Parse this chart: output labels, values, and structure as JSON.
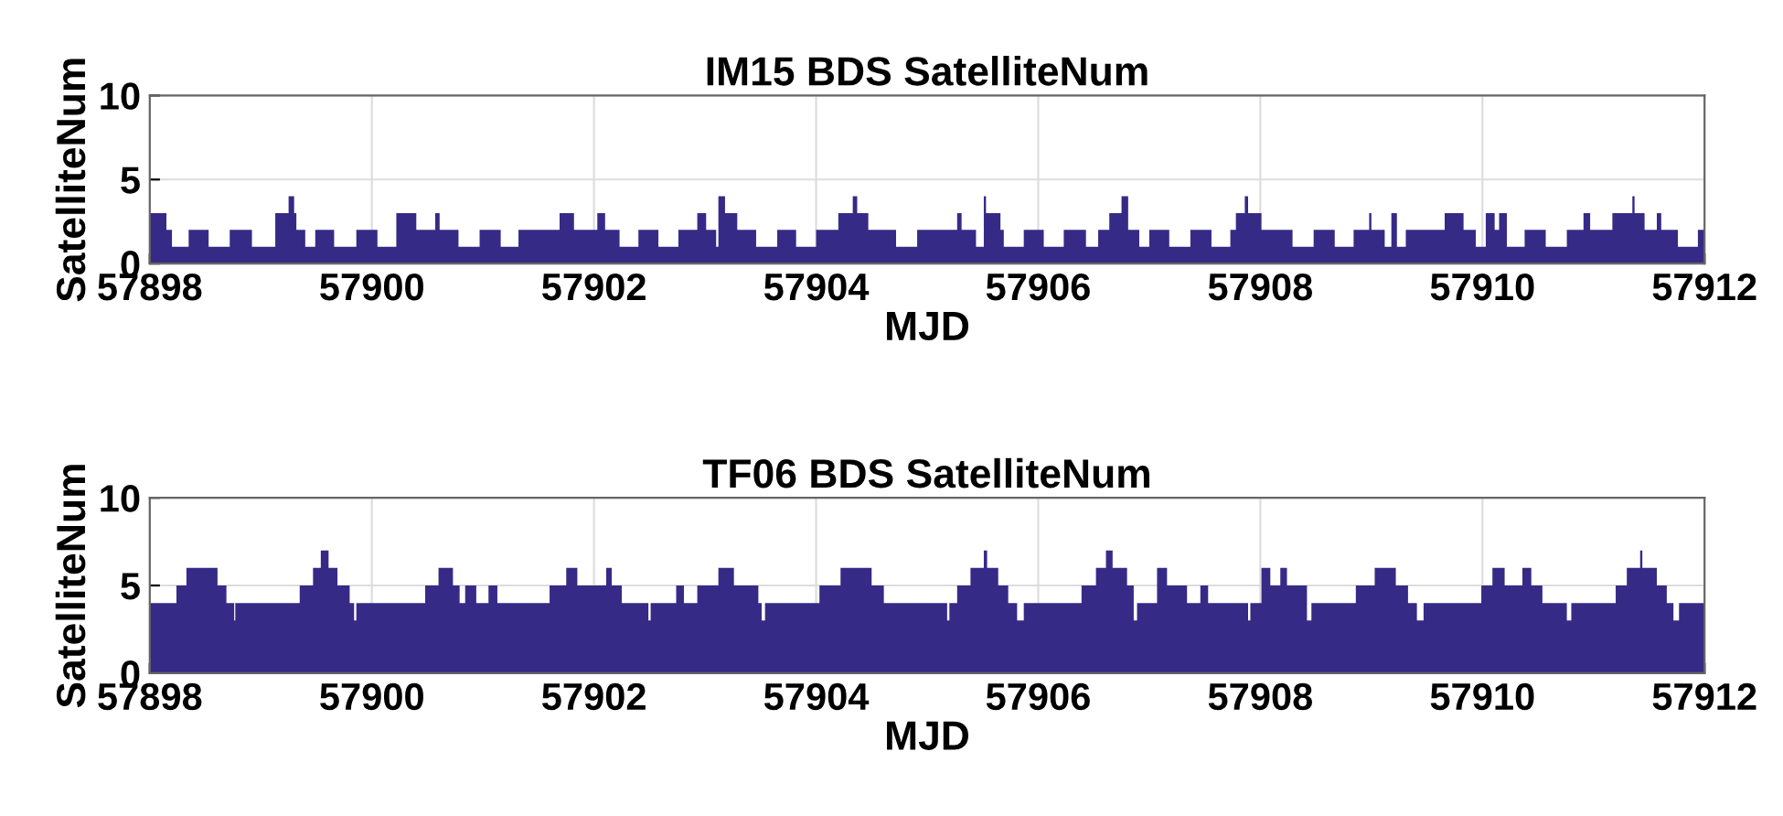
{
  "chart_data": [
    {
      "type": "area",
      "title": "IM15 BDS SatelliteNum",
      "xlabel": "MJD",
      "ylabel": "SatelliteNum",
      "color": "#362a87",
      "x": [
        57898,
        57898.15,
        57898.15,
        57898.2,
        57898.2,
        57898.35,
        57898.35,
        57898.53,
        57898.53,
        57898.72,
        57898.72,
        57898.92,
        57898.92,
        57899.13,
        57899.13,
        57899.25,
        57899.25,
        57899.3,
        57899.3,
        57899.32,
        57899.32,
        57899.4,
        57899.4,
        57899.49,
        57899.49,
        57899.66,
        57899.66,
        57899.86,
        57899.86,
        57900.05,
        57900.05,
        57900.22,
        57900.22,
        57900.4,
        57900.4,
        57900.57,
        57900.57,
        57900.61,
        57900.61,
        57900.78,
        57900.78,
        57900.97,
        57900.97,
        57901.16,
        57901.16,
        57901.32,
        57901.32,
        57901.69,
        57901.69,
        57901.82,
        57901.82,
        57902.03,
        57902.03,
        57902.1,
        57902.1,
        57902.23,
        57902.23,
        57902.4,
        57902.4,
        57902.58,
        57902.58,
        57902.76,
        57902.76,
        57902.93,
        57902.93,
        57903.01,
        57903.01,
        57903.1,
        57903.1,
        57903.12,
        57903.12,
        57903.18,
        57903.18,
        57903.29,
        57903.29,
        57903.46,
        57903.46,
        57903.65,
        57903.65,
        57903.82,
        57903.82,
        57904,
        57904,
        57904.2,
        57904.2,
        57904.33,
        57904.33,
        57904.37,
        57904.37,
        57904.47,
        57904.47,
        57904.72,
        57904.72,
        57904.91,
        57904.91,
        57905.27,
        57905.27,
        57905.31,
        57905.31,
        57905.44,
        57905.44,
        57905.51,
        57905.51,
        57905.53,
        57905.53,
        57905.66,
        57905.66,
        57905.69,
        57905.69,
        57905.87,
        57905.87,
        57906.05,
        57906.05,
        57906.23,
        57906.23,
        57906.43,
        57906.43,
        57906.54,
        57906.54,
        57906.64,
        57906.64,
        57906.75,
        57906.75,
        57906.81,
        57906.81,
        57906.91,
        57906.91,
        57907,
        57907,
        57907.18,
        57907.18,
        57907.37,
        57907.37,
        57907.56,
        57907.56,
        57907.73,
        57907.73,
        57907.78,
        57907.78,
        57907.86,
        57907.86,
        57907.89,
        57907.89,
        57908.01,
        57908.01,
        57908.29,
        57908.29,
        57908.48,
        57908.48,
        57908.67,
        57908.67,
        57908.84,
        57908.84,
        57908.98,
        57908.98,
        57909,
        57909,
        57909.12,
        57909.12,
        57909.18,
        57909.18,
        57909.23,
        57909.23,
        57909.31,
        57909.31,
        57909.66,
        57909.66,
        57909.83,
        57909.83,
        57909.94,
        57909.94,
        57910.03,
        57910.03,
        57910.11,
        57910.11,
        57910.15,
        57910.15,
        57910.22,
        57910.22,
        57910.38,
        57910.38,
        57910.57,
        57910.57,
        57910.76,
        57910.76,
        57910.91,
        57910.91,
        57910.97,
        57910.97,
        57911.17,
        57911.17,
        57911.35,
        57911.35,
        57911.37,
        57911.37,
        57911.46,
        57911.46,
        57911.57,
        57911.57,
        57911.61,
        57911.61,
        57911.76,
        57911.76,
        57911.94,
        57911.94,
        57912
      ],
      "values": [
        3,
        3,
        2,
        2,
        1,
        1,
        2,
        2,
        1,
        1,
        2,
        2,
        1,
        1,
        3,
        3,
        4,
        4,
        3,
        3,
        2,
        2,
        1,
        1,
        2,
        2,
        1,
        1,
        2,
        2,
        1,
        1,
        3,
        3,
        2,
        2,
        3,
        3,
        2,
        2,
        1,
        1,
        2,
        2,
        1,
        1,
        2,
        2,
        3,
        3,
        2,
        2,
        3,
        3,
        2,
        2,
        1,
        1,
        2,
        2,
        1,
        1,
        2,
        2,
        3,
        3,
        2,
        2,
        1,
        1,
        4,
        4,
        3,
        3,
        2,
        2,
        1,
        1,
        2,
        2,
        1,
        1,
        2,
        2,
        3,
        3,
        4,
        4,
        3,
        3,
        2,
        2,
        1,
        1,
        2,
        2,
        3,
        3,
        2,
        2,
        1,
        1,
        4,
        4,
        3,
        3,
        2,
        2,
        1,
        1,
        2,
        2,
        1,
        1,
        2,
        2,
        1,
        1,
        2,
        2,
        3,
        3,
        4,
        4,
        2,
        2,
        1,
        1,
        2,
        2,
        1,
        1,
        2,
        2,
        1,
        1,
        2,
        2,
        3,
        3,
        4,
        4,
        3,
        3,
        2,
        2,
        1,
        1,
        2,
        2,
        1,
        1,
        2,
        2,
        3,
        3,
        2,
        2,
        1,
        1,
        3,
        3,
        1,
        1,
        2,
        2,
        3,
        3,
        2,
        2,
        1,
        1,
        3,
        3,
        2,
        2,
        3,
        3,
        1,
        1,
        2,
        2,
        1,
        1,
        2,
        2,
        3,
        3,
        2,
        2,
        3,
        3,
        4,
        4,
        3,
        3,
        2,
        2,
        3,
        3,
        2,
        2,
        1,
        1,
        2,
        2
      ],
      "xlim": [
        57898,
        57912
      ],
      "ylim": [
        0,
        10
      ],
      "xticks": [
        57898,
        57900,
        57902,
        57904,
        57906,
        57908,
        57910,
        57912
      ],
      "yticks": [
        0,
        5,
        10
      ],
      "grid": true
    },
    {
      "type": "area",
      "title": "TF06 BDS SatelliteNum",
      "xlabel": "MJD",
      "ylabel": "SatelliteNum",
      "color": "#362a87",
      "x": [
        57898,
        57898.24,
        57898.24,
        57898.33,
        57898.33,
        57898.61,
        57898.61,
        57898.69,
        57898.69,
        57898.76,
        57898.76,
        57898.77,
        57898.77,
        57899.35,
        57899.35,
        57899.47,
        57899.47,
        57899.54,
        57899.54,
        57899.61,
        57899.61,
        57899.69,
        57899.69,
        57899.8,
        57899.8,
        57899.84,
        57899.84,
        57899.86,
        57899.86,
        57900.48,
        57900.48,
        57900.6,
        57900.6,
        57900.73,
        57900.73,
        57900.79,
        57900.79,
        57900.84,
        57900.84,
        57900.94,
        57900.94,
        57901.05,
        57901.05,
        57901.13,
        57901.13,
        57901.6,
        57901.6,
        57901.75,
        57901.75,
        57901.85,
        57901.85,
        57902.11,
        57902.11,
        57902.16,
        57902.16,
        57902.25,
        57902.25,
        57902.49,
        57902.49,
        57902.51,
        57902.51,
        57902.74,
        57902.74,
        57902.81,
        57902.81,
        57902.93,
        57902.93,
        57903.12,
        57903.12,
        57903.26,
        57903.26,
        57903.48,
        57903.48,
        57903.51,
        57903.51,
        57903.54,
        57903.54,
        57904.03,
        57904.03,
        57904.22,
        57904.22,
        57904.5,
        57904.5,
        57904.61,
        57904.61,
        57905.18,
        57905.18,
        57905.2,
        57905.2,
        57905.27,
        57905.27,
        57905.39,
        57905.39,
        57905.51,
        57905.51,
        57905.54,
        57905.54,
        57905.64,
        57905.64,
        57905.73,
        57905.73,
        57905.81,
        57905.81,
        57905.87,
        57905.87,
        57906.39,
        57906.39,
        57906.52,
        57906.52,
        57906.61,
        57906.61,
        57906.67,
        57906.67,
        57906.8,
        57906.8,
        57906.86,
        57906.86,
        57906.89,
        57906.89,
        57907.07,
        57907.07,
        57907.16,
        57907.16,
        57907.34,
        57907.34,
        57907.46,
        57907.46,
        57907.53,
        57907.53,
        57907.89,
        57907.89,
        57907.91,
        57907.91,
        57908.01,
        57908.01,
        57908.09,
        57908.09,
        57908.18,
        57908.18,
        57908.24,
        57908.24,
        57908.42,
        57908.42,
        57908.46,
        57908.46,
        57908.86,
        57908.86,
        57909.03,
        57909.03,
        57909.22,
        57909.22,
        57909.33,
        57909.33,
        57909.41,
        57909.41,
        57909.47,
        57909.47,
        57909.99,
        57909.99,
        57910.09,
        57910.09,
        57910.2,
        57910.2,
        57910.36,
        57910.36,
        57910.44,
        57910.44,
        57910.54,
        57910.54,
        57910.76,
        57910.76,
        57910.8,
        57910.8,
        57911.2,
        57911.2,
        57911.3,
        57911.3,
        57911.42,
        57911.42,
        57911.44,
        57911.44,
        57911.57,
        57911.57,
        57911.66,
        57911.66,
        57911.72,
        57911.72,
        57911.77,
        57911.77,
        57912
      ],
      "values": [
        4,
        4,
        5,
        5,
        6,
        6,
        5,
        5,
        4,
        4,
        3,
        3,
        4,
        4,
        5,
        5,
        6,
        6,
        7,
        7,
        6,
        6,
        5,
        5,
        4,
        4,
        3,
        3,
        4,
        4,
        5,
        5,
        6,
        6,
        5,
        5,
        4,
        4,
        5,
        5,
        4,
        4,
        5,
        5,
        4,
        4,
        5,
        5,
        6,
        6,
        5,
        5,
        6,
        6,
        5,
        5,
        4,
        4,
        3,
        3,
        4,
        4,
        5,
        5,
        4,
        4,
        5,
        5,
        6,
        6,
        5,
        5,
        4,
        4,
        3,
        3,
        4,
        4,
        5,
        5,
        6,
        6,
        5,
        5,
        4,
        4,
        3,
        3,
        4,
        4,
        5,
        5,
        6,
        6,
        7,
        7,
        6,
        6,
        5,
        5,
        4,
        4,
        3,
        3,
        4,
        4,
        5,
        5,
        6,
        6,
        7,
        7,
        6,
        6,
        5,
        5,
        3,
        3,
        4,
        4,
        6,
        6,
        5,
        5,
        4,
        4,
        5,
        5,
        4,
        4,
        3,
        3,
        4,
        4,
        6,
        6,
        5,
        5,
        6,
        6,
        5,
        5,
        3,
        3,
        4,
        4,
        5,
        5,
        6,
        6,
        5,
        5,
        4,
        4,
        3,
        3,
        4,
        4,
        5,
        5,
        6,
        6,
        5,
        5,
        6,
        6,
        5,
        5,
        4,
        4,
        3,
        3,
        4,
        4,
        5,
        5,
        6,
        6,
        7,
        7,
        6,
        6,
        5,
        5,
        4,
        4,
        3,
        3,
        4,
        4
      ],
      "xlim": [
        57898,
        57912
      ],
      "ylim": [
        0,
        10
      ],
      "xticks": [
        57898,
        57900,
        57902,
        57904,
        57906,
        57908,
        57910,
        57912
      ],
      "yticks": [
        0,
        5,
        10
      ],
      "grid": true
    }
  ]
}
